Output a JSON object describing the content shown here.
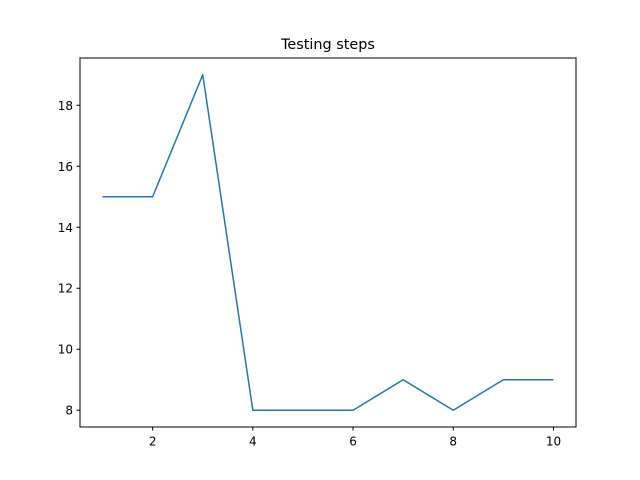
{
  "chart_data": {
    "type": "line",
    "title": "Testing steps",
    "xlabel": "",
    "ylabel": "",
    "x": [
      1,
      2,
      3,
      4,
      5,
      6,
      7,
      8,
      9,
      10
    ],
    "series": [
      {
        "values": [
          15,
          15,
          19,
          8,
          8,
          8,
          9,
          8,
          9,
          9
        ],
        "color": "#1f77b4"
      }
    ],
    "xlim": [
      0.55,
      10.45
    ],
    "ylim": [
      7.45,
      19.55
    ],
    "xticks": [
      2,
      4,
      6,
      8,
      10
    ],
    "yticks": [
      8,
      10,
      12,
      14,
      16,
      18
    ],
    "grid": false,
    "legend": "none"
  }
}
